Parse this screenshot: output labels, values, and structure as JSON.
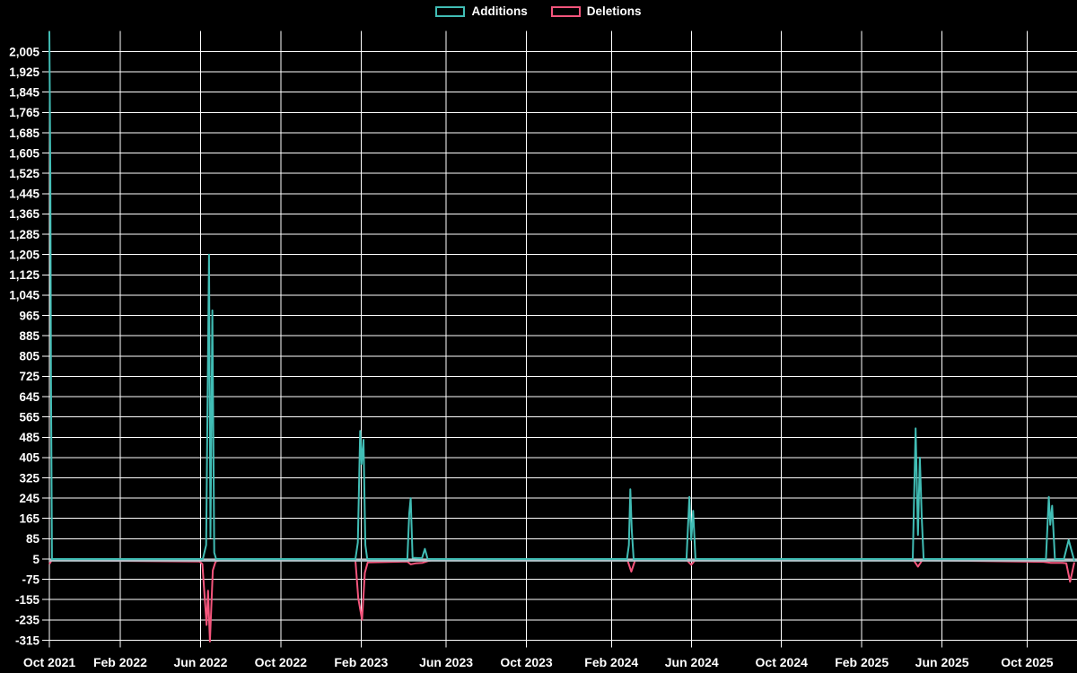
{
  "chart_data": {
    "type": "line",
    "title": "",
    "legend": [
      {
        "label": "Additions",
        "color": "#41bdb5"
      },
      {
        "label": "Deletions",
        "color": "#f4557c"
      }
    ],
    "grid": {
      "color": "#ffffff",
      "background": "#000000",
      "visible": true
    },
    "baseline": {
      "value": 0,
      "color": "#b0c4ca",
      "width": 3
    },
    "x_axis": {
      "unit": "week_index",
      "ticks": [
        {
          "label": "Oct 2021",
          "week": 0
        },
        {
          "label": "Feb 2022",
          "week": 15
        },
        {
          "label": "Jun 2022",
          "week": 32
        },
        {
          "label": "Oct 2022",
          "week": 49
        },
        {
          "label": "Feb 2023",
          "week": 66
        },
        {
          "label": "Jun 2023",
          "week": 84
        },
        {
          "label": "Oct 2023",
          "week": 101
        },
        {
          "label": "Feb 2024",
          "week": 119
        },
        {
          "label": "Jun 2024",
          "week": 136
        },
        {
          "label": "Oct 2024",
          "week": 155
        },
        {
          "label": "Feb 2025",
          "week": 172
        },
        {
          "label": "Jun 2025",
          "week": 189
        },
        {
          "label": "Oct 2025",
          "week": 207
        }
      ],
      "range_weeks": [
        0,
        217
      ]
    },
    "y_axis": {
      "min": -315,
      "max": 2085,
      "step": 80,
      "tick_values": [
        2005,
        1925,
        1845,
        1765,
        1685,
        1605,
        1525,
        1445,
        1365,
        1285,
        1205,
        1125,
        1045,
        965,
        885,
        805,
        725,
        645,
        565,
        485,
        405,
        325,
        245,
        165,
        85,
        5,
        -75,
        -155,
        -235,
        -315
      ]
    },
    "series": [
      {
        "name": "Additions",
        "color": "#41bdb5",
        "points": [
          [
            0,
            2085
          ],
          [
            0.2,
            1520
          ],
          [
            0.35,
            730
          ],
          [
            0.55,
            5
          ],
          [
            32.5,
            5
          ],
          [
            33.2,
            60
          ],
          [
            33.8,
            1205
          ],
          [
            34.1,
            90
          ],
          [
            34.5,
            985
          ],
          [
            34.9,
            30
          ],
          [
            35.3,
            5
          ],
          [
            64.8,
            5
          ],
          [
            65.3,
            70
          ],
          [
            65.8,
            510
          ],
          [
            66.1,
            380
          ],
          [
            66.5,
            475
          ],
          [
            66.9,
            60
          ],
          [
            67.3,
            5
          ],
          [
            75.8,
            5
          ],
          [
            76.2,
            185
          ],
          [
            76.5,
            245
          ],
          [
            76.9,
            10
          ],
          [
            78.9,
            8
          ],
          [
            79.5,
            45
          ],
          [
            80.1,
            5
          ],
          [
            122.3,
            5
          ],
          [
            122.7,
            60
          ],
          [
            123,
            280
          ],
          [
            123.3,
            120
          ],
          [
            123.7,
            5
          ],
          [
            134.9,
            5
          ],
          [
            135.5,
            250
          ],
          [
            135.9,
            80
          ],
          [
            136.3,
            195
          ],
          [
            136.8,
            5
          ],
          [
            182.8,
            5
          ],
          [
            183.4,
            520
          ],
          [
            183.9,
            100
          ],
          [
            184.3,
            405
          ],
          [
            184.7,
            170
          ],
          [
            185.1,
            5
          ],
          [
            211,
            5
          ],
          [
            211.6,
            250
          ],
          [
            211.9,
            140
          ],
          [
            212.3,
            215
          ],
          [
            212.9,
            5
          ],
          [
            214.8,
            5
          ],
          [
            215.8,
            80
          ],
          [
            217,
            -2
          ]
        ]
      },
      {
        "name": "Deletions",
        "color": "#f4557c",
        "points": [
          [
            0,
            -15
          ],
          [
            0.5,
            0
          ],
          [
            31.8,
            -5
          ],
          [
            32.4,
            -15
          ],
          [
            33.3,
            -255
          ],
          [
            33.6,
            -120
          ],
          [
            34,
            -320
          ],
          [
            34.6,
            -40
          ],
          [
            35.2,
            -5
          ],
          [
            36,
            0
          ],
          [
            64.8,
            0
          ],
          [
            65.4,
            -150
          ],
          [
            66.2,
            -235
          ],
          [
            66.8,
            -50
          ],
          [
            67.4,
            -8
          ],
          [
            75.8,
            -5
          ],
          [
            76.5,
            -16
          ],
          [
            77.5,
            -12
          ],
          [
            79,
            -10
          ],
          [
            80.2,
            -3
          ],
          [
            81,
            0
          ],
          [
            122.4,
            0
          ],
          [
            123.2,
            -45
          ],
          [
            124,
            0
          ],
          [
            135,
            0
          ],
          [
            135.9,
            -18
          ],
          [
            136.7,
            0
          ],
          [
            183,
            0
          ],
          [
            183.9,
            -25
          ],
          [
            184.8,
            0
          ],
          [
            210.5,
            -6
          ],
          [
            212,
            -10
          ],
          [
            214.5,
            -10
          ],
          [
            215.3,
            -12
          ],
          [
            216.1,
            -85
          ],
          [
            217,
            -8
          ]
        ]
      }
    ]
  }
}
